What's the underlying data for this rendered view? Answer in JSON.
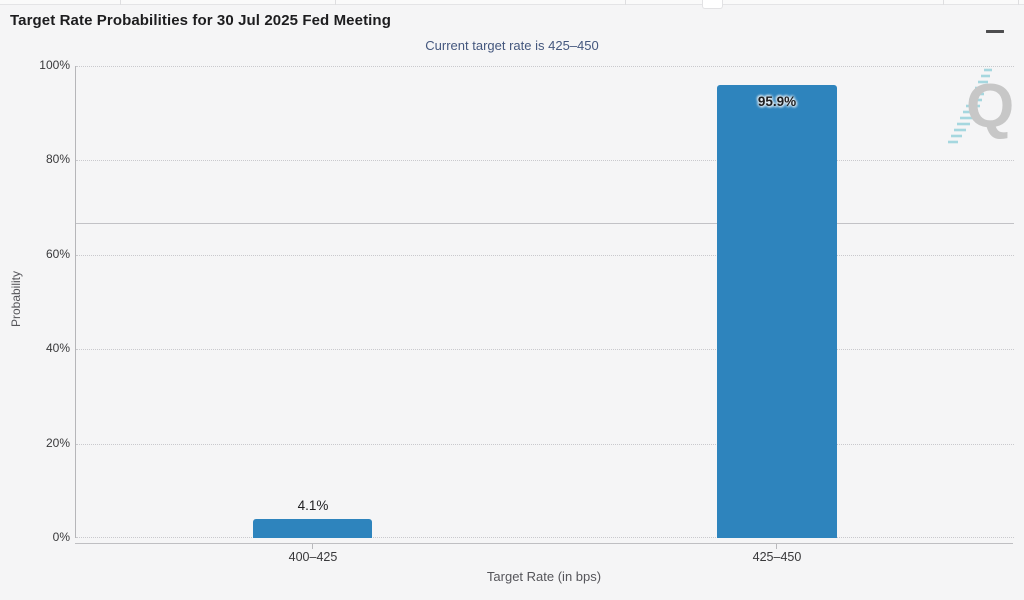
{
  "header": {
    "title": "Target Rate Probabilities for 30 Jul 2025 Fed Meeting",
    "subtitle": "Current target rate is 425–450",
    "menu_icon": "hamburger-menu-icon"
  },
  "watermark": {
    "letter": "Q"
  },
  "colors": {
    "bar": "#2e84bd",
    "subtitle_text": "#44577e",
    "background": "#f5f5f6",
    "watermark_gray": "#c7c7c7",
    "watermark_dash": "#a5d7df"
  },
  "chart_data": {
    "type": "bar",
    "title": "Target Rate Probabilities for 30 Jul 2025 Fed Meeting",
    "subtitle": "Current target rate is 425–450",
    "xlabel": "Target Rate (in bps)",
    "ylabel": "Probability",
    "categories": [
      "400–425",
      "425–450"
    ],
    "values": [
      4.1,
      95.9
    ],
    "value_labels": [
      "4.1%",
      "95.9%"
    ],
    "series": [
      {
        "name": "Probability",
        "values": [
          4.1,
          95.9
        ]
      }
    ],
    "ylim": [
      0,
      100
    ],
    "ytick_labels": [
      "0%",
      "20%",
      "40%",
      "60%",
      "80%",
      "100%"
    ],
    "grid": "horizontal dotted gridlines at 20% steps",
    "reference_line": 66.7,
    "legend": "none",
    "bar_color": "#2e84bd"
  }
}
